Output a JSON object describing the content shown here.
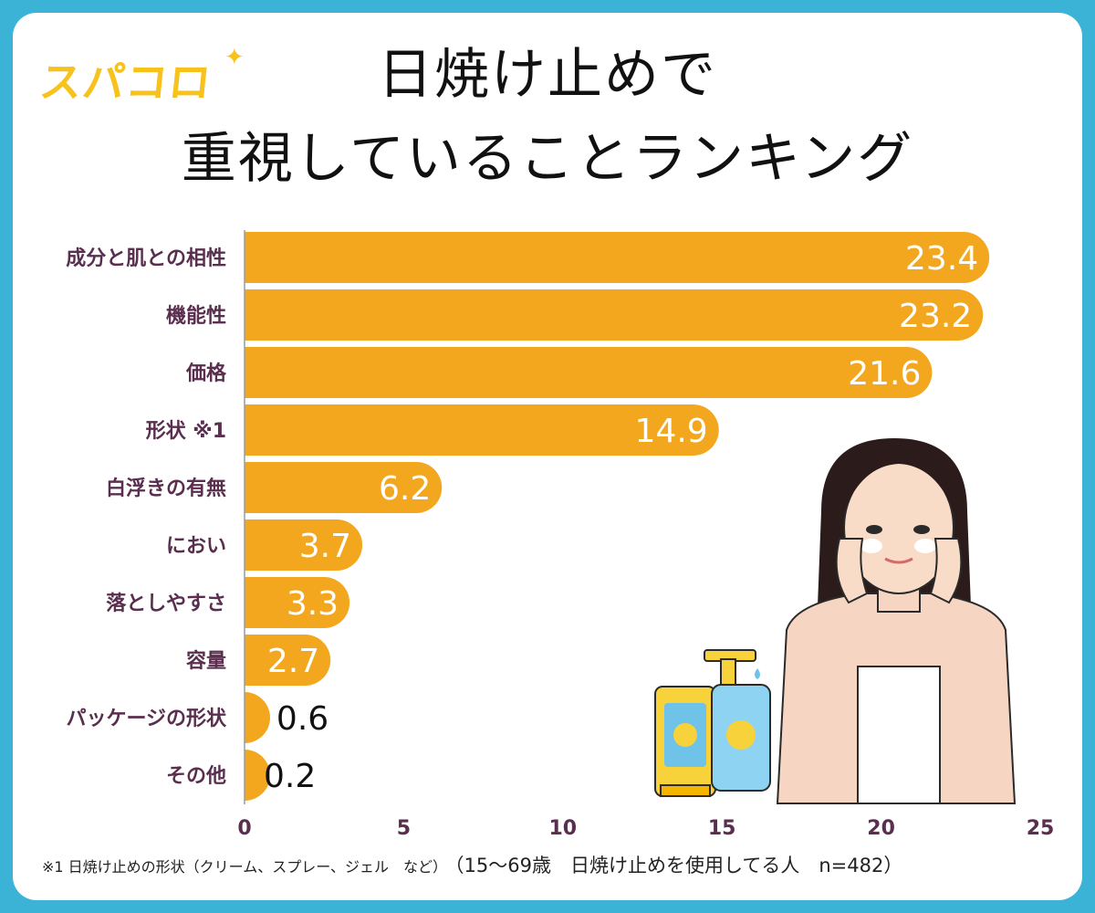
{
  "logo": {
    "text": "スパコロ",
    "star": "✦"
  },
  "title": {
    "line1": "日焼け止めで",
    "line2": "重視していることランキング"
  },
  "footnote": {
    "note": "※1 日焼け止めの形状（クリーム、スプレー、ジェル　など）",
    "sample": "（15〜69歳　日焼け止めを使用してる人　n=482）"
  },
  "colors": {
    "frame": "#3BB3D6",
    "bar": "#F2A71E",
    "category_label": "#5A2E4F",
    "value_inside": "#FFFFFF",
    "value_outside": "#111111"
  },
  "illustration": {
    "woman": "woman-touching-face-illustration",
    "products": "sunscreen-bottles-illustration"
  },
  "chart_data": {
    "type": "bar",
    "orientation": "horizontal",
    "categories": [
      "成分と肌との相性",
      "機能性",
      "価格",
      "形状 ※1",
      "白浮きの有無",
      "におい",
      "落としやすさ",
      "容量",
      "パッケージの形状",
      "その他"
    ],
    "values": [
      23.4,
      23.2,
      21.6,
      14.9,
      6.2,
      3.7,
      3.3,
      2.7,
      0.6,
      0.2
    ],
    "value_labels": [
      "23.4",
      "23.2",
      "21.6",
      "14.9",
      "6.2",
      "3.7",
      "3.3",
      "2.7",
      "0.6",
      "0.2"
    ],
    "xlim": [
      0,
      25
    ],
    "x_ticks": [
      "0",
      "5",
      "10",
      "15",
      "20",
      "25"
    ],
    "grid": false,
    "legend": "none"
  }
}
